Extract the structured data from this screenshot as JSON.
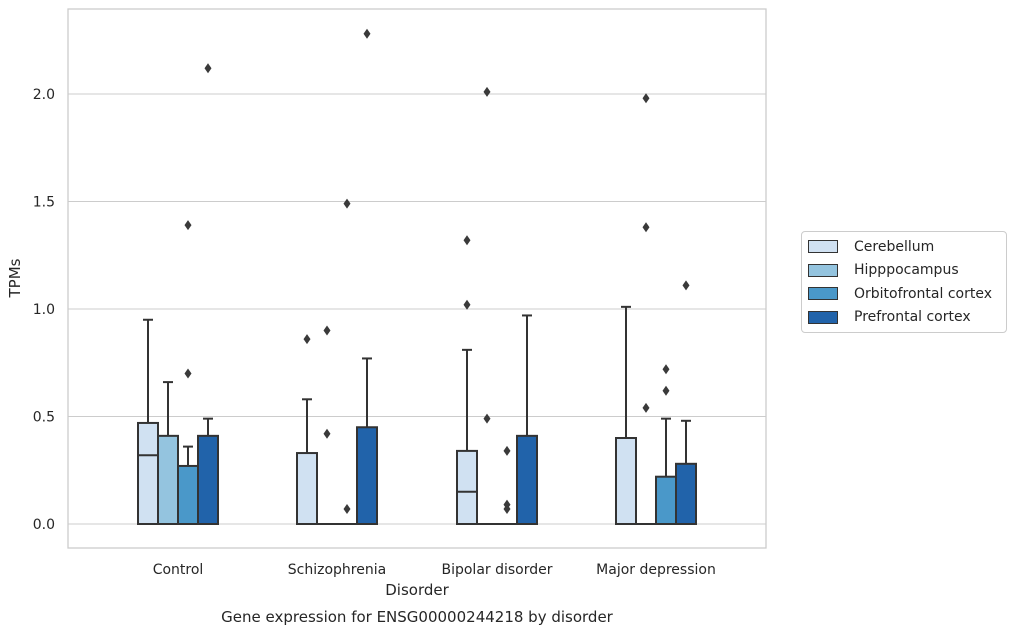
{
  "chart_data": {
    "type": "box",
    "title": "",
    "caption": "Gene expression for ENSG00000244218 by disorder",
    "xlabel": "Disorder",
    "ylabel": "TPMs",
    "categories": [
      "Control",
      "Schizophrenia",
      "Bipolar disorder",
      "Major depression"
    ],
    "ylim": [
      -0.11,
      2.4
    ],
    "yticks": [
      0.0,
      0.5,
      1.0,
      1.5,
      2.0
    ],
    "ytick_labels": [
      "0.0",
      "0.5",
      "1.0",
      "1.5",
      "2.0"
    ],
    "grid": "horizontal",
    "legend_position": "right-outside",
    "series": [
      {
        "name": "Cerebellum",
        "color": "#d0e1f2",
        "boxes": [
          {
            "category": "Control",
            "q1": 0.0,
            "median": 0.32,
            "q3": 0.47,
            "whisker_low": 0.0,
            "whisker_high": 0.95,
            "outliers": []
          },
          {
            "category": "Schizophrenia",
            "q1": 0.0,
            "median": 0.0,
            "q3": 0.33,
            "whisker_low": 0.0,
            "whisker_high": 0.58,
            "outliers": [
              0.86
            ]
          },
          {
            "category": "Bipolar disorder",
            "q1": 0.0,
            "median": 0.15,
            "q3": 0.34,
            "whisker_low": 0.0,
            "whisker_high": 0.81,
            "outliers": [
              1.02,
              1.32
            ]
          },
          {
            "category": "Major depression",
            "q1": 0.0,
            "median": 0.0,
            "q3": 0.4,
            "whisker_low": 0.0,
            "whisker_high": 1.01,
            "outliers": []
          }
        ]
      },
      {
        "name": "Hipppocampus",
        "color": "#94c4df",
        "boxes": [
          {
            "category": "Control",
            "q1": 0.0,
            "median": 0.0,
            "q3": 0.41,
            "whisker_low": 0.0,
            "whisker_high": 0.66,
            "outliers": []
          },
          {
            "category": "Schizophrenia",
            "q1": 0.0,
            "median": 0.0,
            "q3": 0.0,
            "whisker_low": 0.0,
            "whisker_high": 0.0,
            "outliers": [
              0.42,
              0.9
            ]
          },
          {
            "category": "Bipolar disorder",
            "q1": 0.0,
            "median": 0.0,
            "q3": 0.0,
            "whisker_low": 0.0,
            "whisker_high": 0.0,
            "outliers": [
              0.49,
              2.01
            ]
          },
          {
            "category": "Major depression",
            "q1": 0.0,
            "median": 0.0,
            "q3": 0.0,
            "whisker_low": 0.0,
            "whisker_high": 0.0,
            "outliers": [
              0.54,
              1.38,
              1.98
            ]
          }
        ]
      },
      {
        "name": "Orbitofrontal cortex",
        "color": "#4a98c9",
        "boxes": [
          {
            "category": "Control",
            "q1": 0.0,
            "median": 0.0,
            "q3": 0.27,
            "whisker_low": 0.0,
            "whisker_high": 0.36,
            "outliers": [
              0.7,
              1.39
            ]
          },
          {
            "category": "Schizophrenia",
            "q1": 0.0,
            "median": 0.0,
            "q3": 0.0,
            "whisker_low": 0.0,
            "whisker_high": 0.0,
            "outliers": [
              0.07,
              1.49
            ]
          },
          {
            "category": "Bipolar disorder",
            "q1": 0.0,
            "median": 0.0,
            "q3": 0.0,
            "whisker_low": 0.0,
            "whisker_high": 0.0,
            "outliers": [
              0.07,
              0.09,
              0.34
            ]
          },
          {
            "category": "Major depression",
            "q1": 0.0,
            "median": 0.0,
            "q3": 0.22,
            "whisker_low": 0.0,
            "whisker_high": 0.49,
            "outliers": [
              0.62,
              0.72
            ]
          }
        ]
      },
      {
        "name": "Prefrontal cortex",
        "color": "#2163aa",
        "boxes": [
          {
            "category": "Control",
            "q1": 0.0,
            "median": 0.0,
            "q3": 0.41,
            "whisker_low": 0.0,
            "whisker_high": 0.49,
            "outliers": [
              2.12
            ]
          },
          {
            "category": "Schizophrenia",
            "q1": 0.0,
            "median": 0.0,
            "q3": 0.45,
            "whisker_low": 0.0,
            "whisker_high": 0.77,
            "outliers": [
              2.28
            ]
          },
          {
            "category": "Bipolar disorder",
            "q1": 0.0,
            "median": 0.0,
            "q3": 0.41,
            "whisker_low": 0.0,
            "whisker_high": 0.97,
            "outliers": []
          },
          {
            "category": "Major depression",
            "q1": 0.0,
            "median": 0.0,
            "q3": 0.28,
            "whisker_low": 0.0,
            "whisker_high": 0.48,
            "outliers": [
              1.11
            ]
          }
        ]
      }
    ]
  }
}
